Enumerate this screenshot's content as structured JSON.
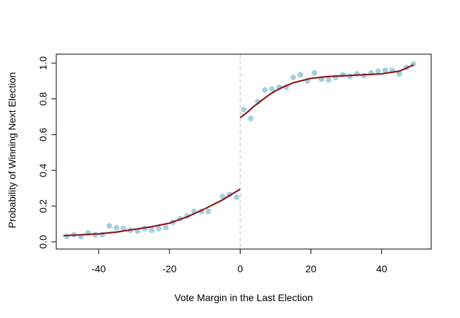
{
  "chart_data": {
    "type": "scatter",
    "title": "",
    "xlabel": "Vote Margin in the Last Election",
    "ylabel": "Probability of Winning Next Election",
    "xlim": [
      -52,
      54
    ],
    "ylim": [
      -0.04,
      1.05
    ],
    "xticks": [
      -40,
      -20,
      0,
      20,
      40
    ],
    "xtick_labels": [
      "-40",
      "-20",
      "0",
      "20",
      "40"
    ],
    "yticks": [
      0.0,
      0.2,
      0.4,
      0.6,
      0.8,
      1.0
    ],
    "ytick_labels": [
      "0.0",
      "0.2",
      "0.4",
      "0.6",
      "0.8",
      "1.0"
    ],
    "grid": false,
    "legend": "none",
    "cutoff_line": {
      "x": 0,
      "style": "dashed",
      "color": "#c8c8c8"
    },
    "points": {
      "color": "#a6cfe0",
      "x": [
        -49,
        -47,
        -45,
        -43,
        -41,
        -39,
        -37,
        -35,
        -33,
        -31,
        -29,
        -27,
        -25,
        -23,
        -21,
        -19,
        -17,
        -15,
        -13,
        -11,
        -9,
        -5,
        -3,
        -1,
        1,
        3,
        5,
        7,
        9,
        11,
        13,
        15,
        17,
        19,
        21,
        23,
        25,
        27,
        29,
        31,
        33,
        35,
        37,
        39,
        41,
        43,
        45,
        47,
        49
      ],
      "y": [
        0.03,
        0.04,
        0.03,
        0.05,
        0.04,
        0.04,
        0.09,
        0.08,
        0.075,
        0.065,
        0.06,
        0.075,
        0.065,
        0.075,
        0.08,
        0.11,
        0.13,
        0.145,
        0.17,
        0.17,
        0.17,
        0.255,
        0.265,
        0.25,
        0.74,
        0.69,
        0.785,
        0.85,
        0.855,
        0.865,
        0.865,
        0.92,
        0.935,
        0.9,
        0.945,
        0.91,
        0.905,
        0.92,
        0.935,
        0.925,
        0.94,
        0.93,
        0.945,
        0.955,
        0.96,
        0.96,
        0.94,
        0.975,
        0.995
      ]
    },
    "fit_lines": {
      "color": "#8b1a1a",
      "left": {
        "x": [
          -50,
          -45,
          -40,
          -35,
          -30,
          -25,
          -20,
          -15,
          -10,
          -5,
          0
        ],
        "y": [
          0.035,
          0.04,
          0.045,
          0.055,
          0.07,
          0.085,
          0.105,
          0.14,
          0.185,
          0.235,
          0.295
        ]
      },
      "right": {
        "x": [
          0,
          2,
          4,
          6,
          8,
          10,
          12,
          15,
          20,
          25,
          30,
          35,
          40,
          45,
          49
        ],
        "y": [
          0.695,
          0.725,
          0.76,
          0.79,
          0.82,
          0.845,
          0.865,
          0.89,
          0.915,
          0.925,
          0.93,
          0.935,
          0.94,
          0.955,
          0.99
        ]
      }
    }
  }
}
